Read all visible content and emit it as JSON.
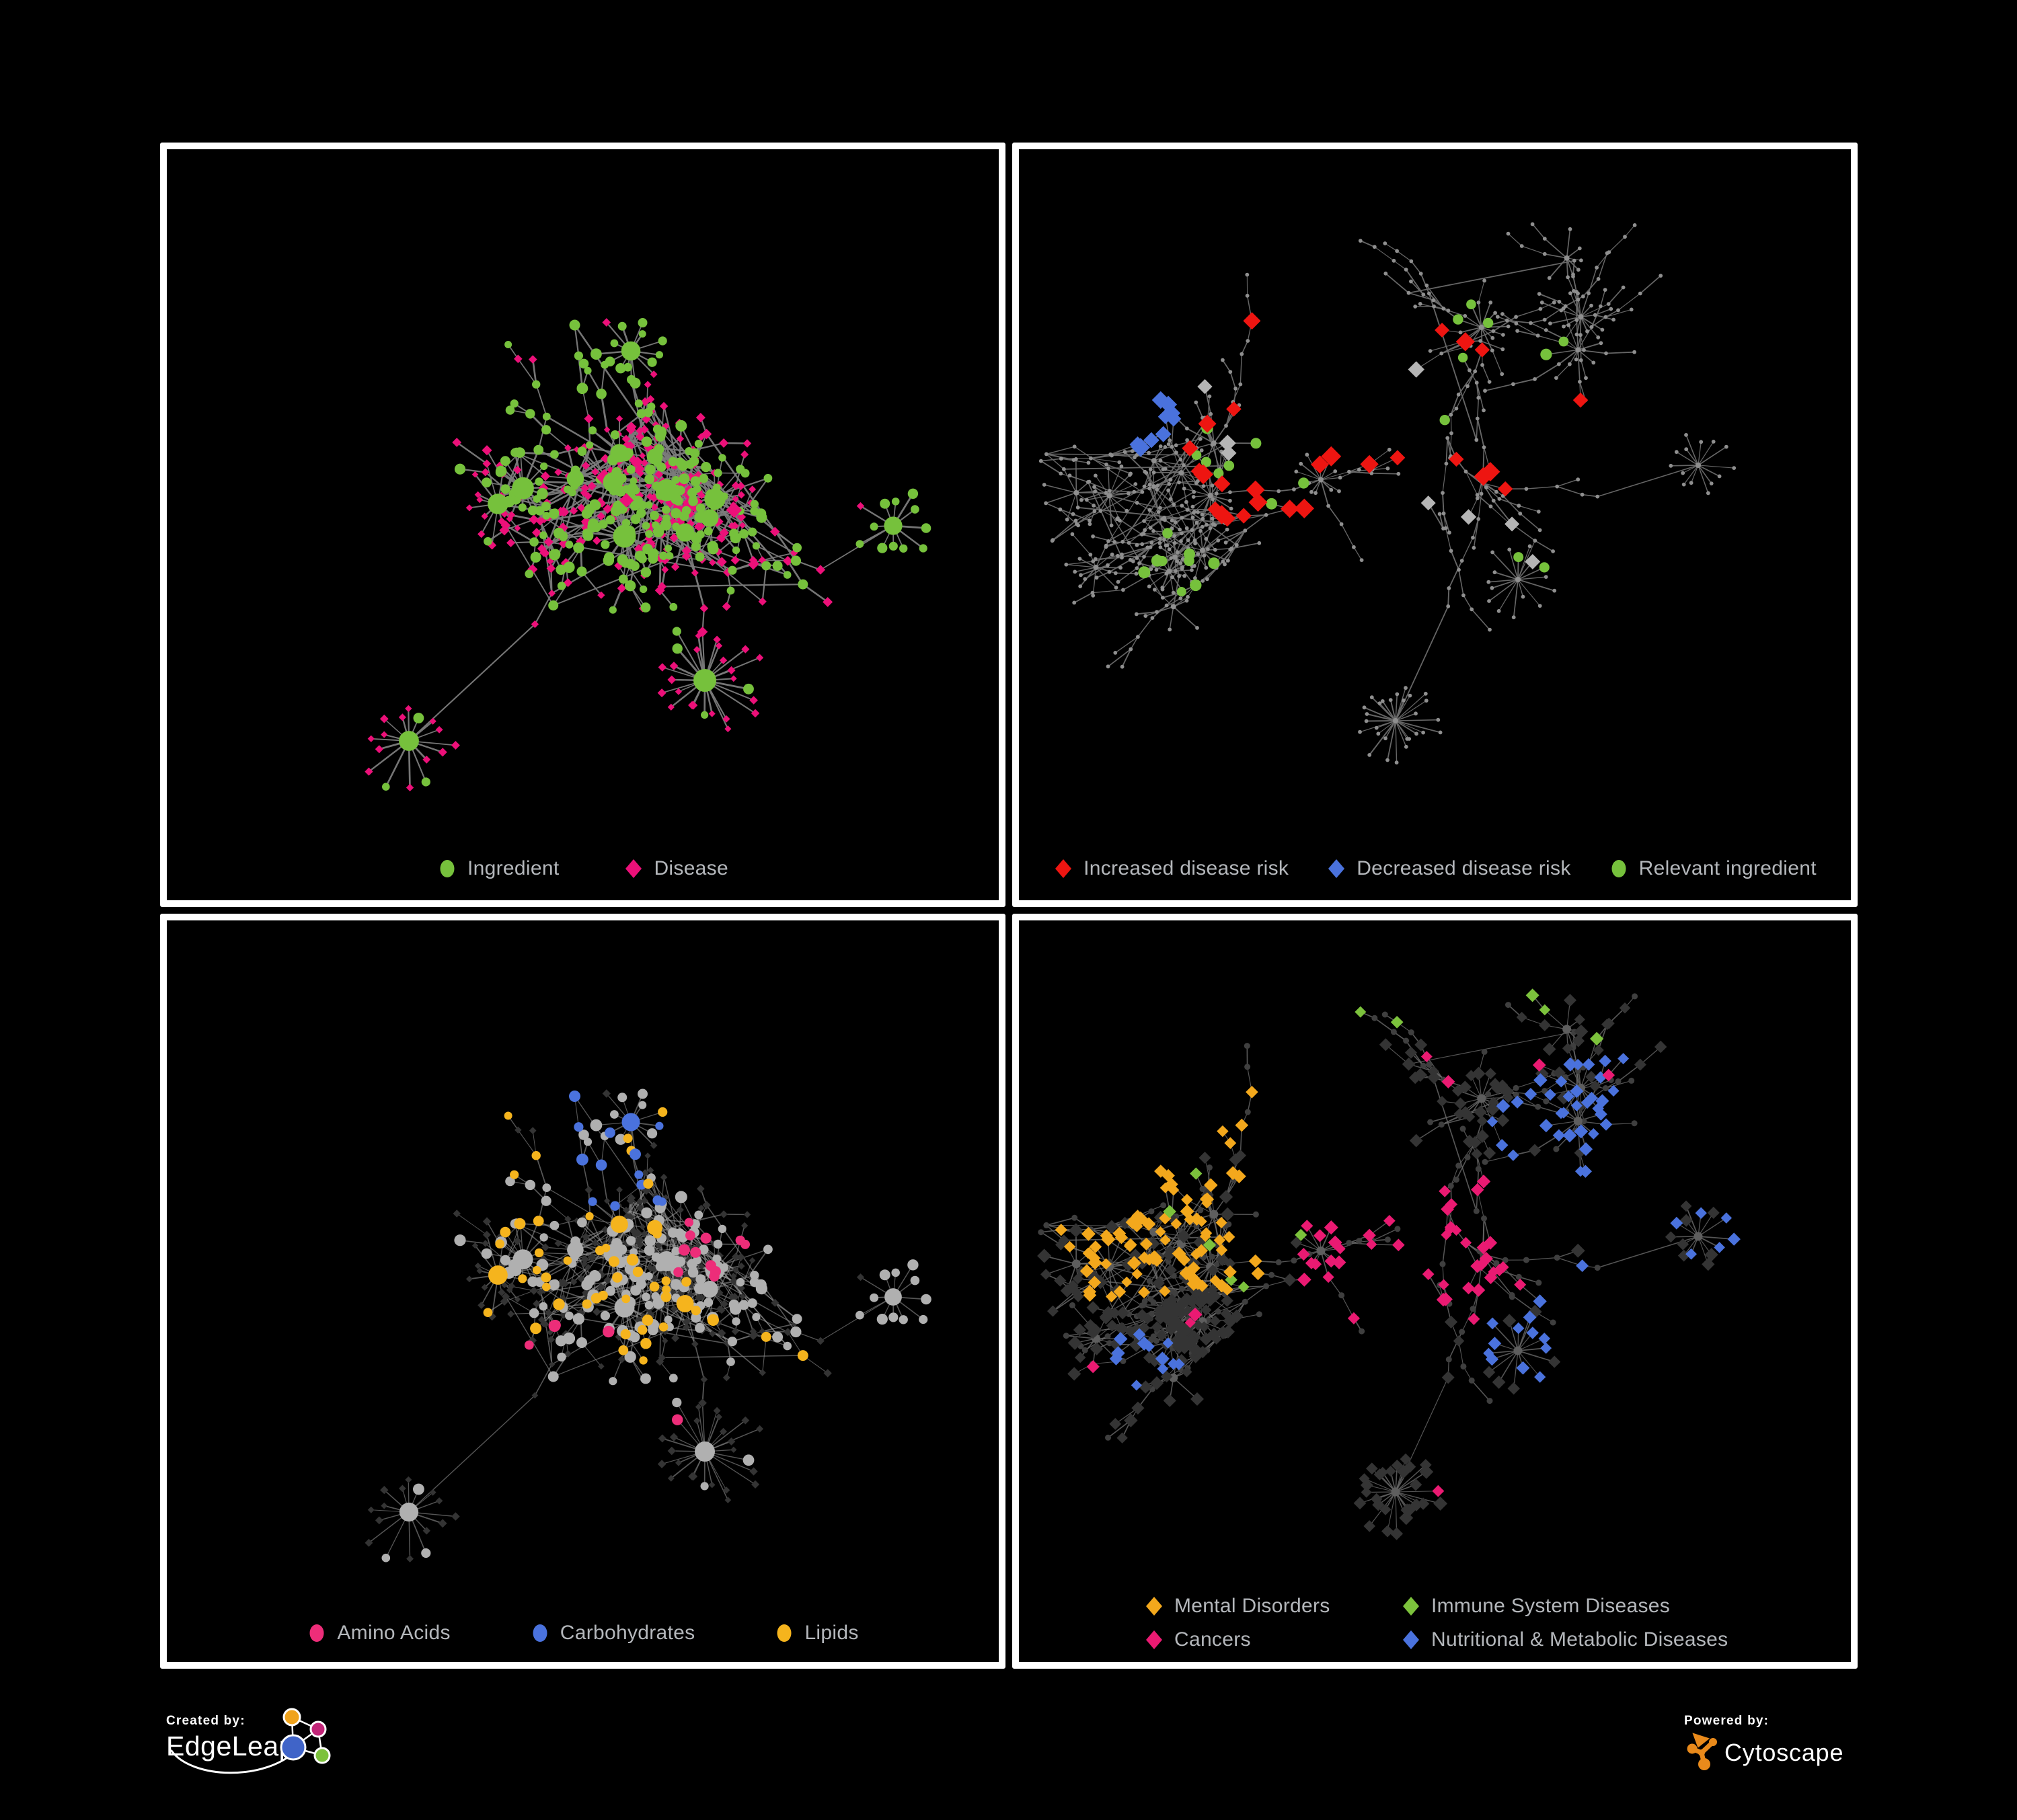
{
  "branding": {
    "created_by": {
      "label": "Created by:",
      "name": "EdgeLeap"
    },
    "powered_by": {
      "label": "Powered by:",
      "name": "Cytoscape"
    }
  },
  "style": {
    "canvas_bg": "#000000",
    "panel_bg": "#000000",
    "panel_border": "#ffffff",
    "legend_text": "#b4b7bb",
    "edge_gray_thick": "#7b7b7b",
    "edge_gray_thin": "#6a6a6a",
    "edge_gray_hazy": "#9a9a9a",
    "node_gray_light": "#b0b0b0",
    "node_gray_tiny": "#8f8f8f",
    "node_gray_dark": "#343434",
    "gray_diamond_highlight": "#b5b5b5",
    "logo_orange": "#e98a1b",
    "edgeleap_orange": "#f0a31c",
    "edgeleap_magenta": "#c22578",
    "edgeleap_blue": "#4064c8",
    "edgeleap_green": "#7cc23c"
  },
  "panels": [
    {
      "name": "ingredient-disease-network",
      "legend": [
        {
          "label": "Ingredient",
          "shape": "circle",
          "color": "#76c13c"
        },
        {
          "label": "Disease",
          "shape": "diamond",
          "color": "#ec1079"
        }
      ]
    },
    {
      "name": "disease-risk-network",
      "legend": [
        {
          "label": "Increased disease risk",
          "shape": "diamond",
          "color": "#ee1511"
        },
        {
          "label": "Decreased disease risk",
          "shape": "diamond",
          "color": "#4a72dd"
        },
        {
          "label": "Relevant ingredient",
          "shape": "circle",
          "color": "#76c13c"
        }
      ]
    },
    {
      "name": "nutrient-class-network",
      "legend": [
        {
          "label": "Amino Acids",
          "shape": "circle",
          "color": "#ed2d79"
        },
        {
          "label": "Carbohydrates",
          "shape": "circle",
          "color": "#4a72dd"
        },
        {
          "label": "Lipids",
          "shape": "circle",
          "color": "#f5b41d"
        }
      ]
    },
    {
      "name": "disease-class-network",
      "legend": [
        {
          "label": "Mental Disorders",
          "shape": "diamond",
          "color": "#f3a81c"
        },
        {
          "label": "Immune System Diseases",
          "shape": "diamond",
          "color": "#7cc23c"
        },
        {
          "label": "Cancers",
          "shape": "diamond",
          "color": "#ea1a72"
        },
        {
          "label": "Nutritional & Metabolic Diseases",
          "shape": "diamond",
          "color": "#4a72dd"
        }
      ]
    }
  ]
}
